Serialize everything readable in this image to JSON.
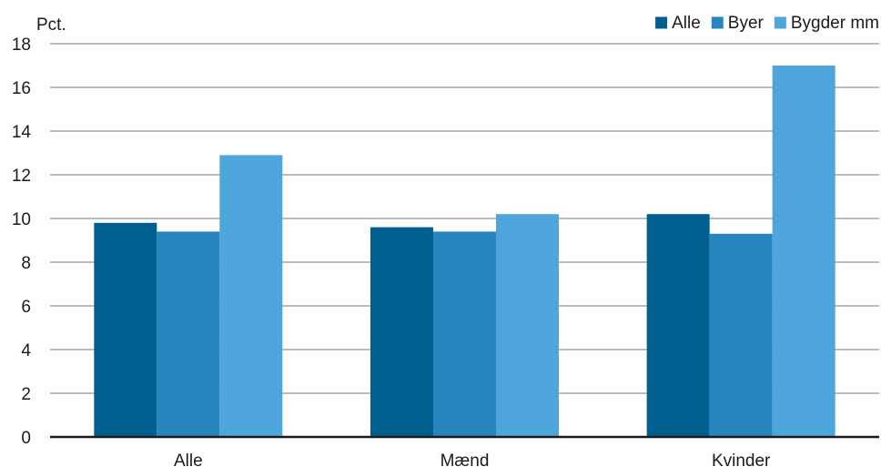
{
  "chart_data": {
    "type": "bar",
    "ylabel": "Pct.",
    "categories": [
      "Alle",
      "Mænd",
      "Kvinder"
    ],
    "series": [
      {
        "name": "Alle",
        "color": "#005f8f",
        "values": [
          9.8,
          9.6,
          10.2
        ]
      },
      {
        "name": "Byer",
        "color": "#2786bf",
        "values": [
          9.4,
          9.4,
          9.3
        ]
      },
      {
        "name": "Bygder mm",
        "color": "#4ea6dd",
        "values": [
          12.9,
          10.2,
          17.0
        ]
      }
    ],
    "ylim": [
      0,
      18
    ],
    "yticks": [
      0,
      2,
      4,
      6,
      8,
      10,
      12,
      14,
      16,
      18
    ],
    "grid": true,
    "legend_position": "top-right"
  }
}
